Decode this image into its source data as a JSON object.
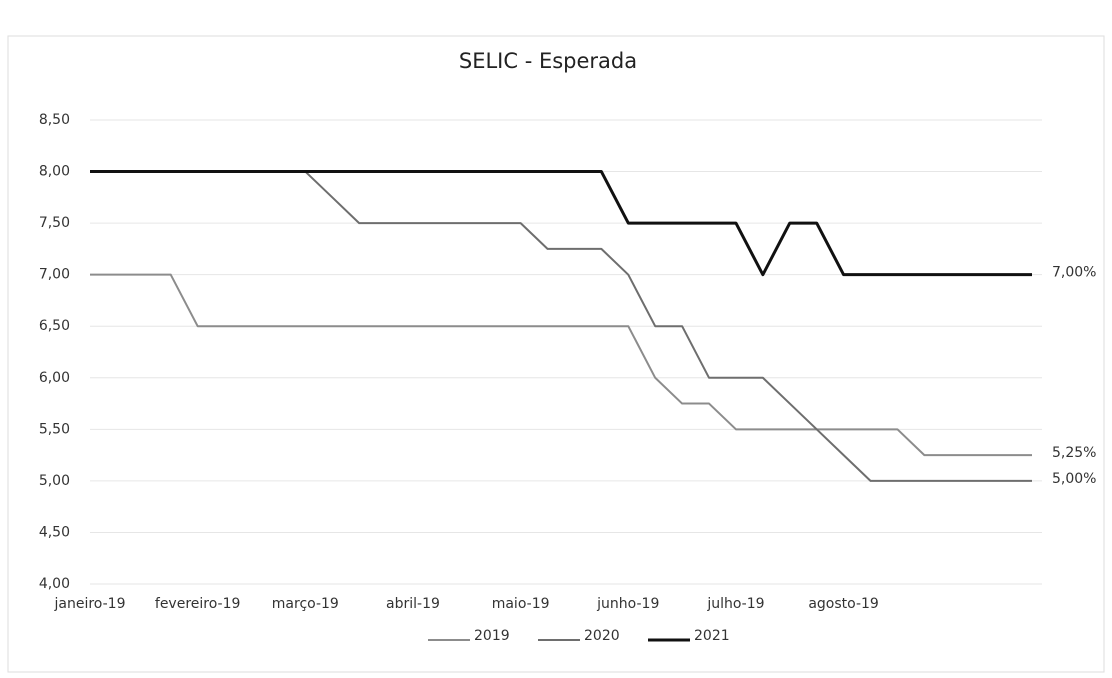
{
  "chart_data": {
    "type": "line",
    "title": "SELIC - Esperada",
    "categories": [
      "janeiro-19",
      null,
      null,
      null,
      "fevereiro-19",
      null,
      null,
      null,
      "março-19",
      null,
      null,
      null,
      "abril-19",
      null,
      null,
      null,
      "maio-19",
      null,
      null,
      null,
      "junho-19",
      null,
      null,
      null,
      "julho-19",
      null,
      null,
      null,
      "agosto-19",
      null,
      null,
      null,
      null,
      null,
      null,
      null
    ],
    "series": [
      {
        "name": "2019",
        "color": "#8c8c8c",
        "end_label": "5,25%",
        "values": [
          7.0,
          7.0,
          7.0,
          7.0,
          6.5,
          6.5,
          6.5,
          6.5,
          6.5,
          6.5,
          6.5,
          6.5,
          6.5,
          6.5,
          6.5,
          6.5,
          6.5,
          6.5,
          6.5,
          6.5,
          6.5,
          6.0,
          5.75,
          5.75,
          5.5,
          5.5,
          5.5,
          5.5,
          5.5,
          5.5,
          5.5,
          5.25,
          5.25,
          5.25,
          5.25,
          5.25
        ]
      },
      {
        "name": "2020",
        "color": "#6e6e6e",
        "end_label": "5,00%",
        "values": [
          8.0,
          8.0,
          8.0,
          8.0,
          8.0,
          8.0,
          8.0,
          8.0,
          8.0,
          7.75,
          7.5,
          7.5,
          7.5,
          7.5,
          7.5,
          7.5,
          7.5,
          7.25,
          7.25,
          7.25,
          7.0,
          6.5,
          6.5,
          6.0,
          6.0,
          6.0,
          5.75,
          5.5,
          5.25,
          5.0,
          5.0,
          5.0,
          5.0,
          5.0,
          5.0,
          5.0
        ]
      },
      {
        "name": "2021",
        "color": "#111111",
        "end_label": "7,00%",
        "values": [
          8.0,
          8.0,
          8.0,
          8.0,
          8.0,
          8.0,
          8.0,
          8.0,
          8.0,
          8.0,
          8.0,
          8.0,
          8.0,
          8.0,
          8.0,
          8.0,
          8.0,
          8.0,
          8.0,
          8.0,
          7.5,
          7.5,
          7.5,
          7.5,
          7.5,
          7.0,
          7.5,
          7.5,
          7.0,
          7.0,
          7.0,
          7.0,
          7.0,
          7.0,
          7.0,
          7.0
        ]
      }
    ],
    "ylim": [
      4,
      8.5
    ],
    "yticks": [
      {
        "value": 4,
        "label": "4,00"
      },
      {
        "value": 4.5,
        "label": "4,50"
      },
      {
        "value": 5,
        "label": "5,00"
      },
      {
        "value": 5.5,
        "label": "5,50"
      },
      {
        "value": 6,
        "label": "6,00"
      },
      {
        "value": 6.5,
        "label": "6,50"
      },
      {
        "value": 7,
        "label": "7,00"
      },
      {
        "value": 7.5,
        "label": "7,50"
      },
      {
        "value": 8,
        "label": "8,00"
      },
      {
        "value": 8.5,
        "label": "8,50"
      }
    ],
    "grid": true,
    "legend": "bottom"
  }
}
